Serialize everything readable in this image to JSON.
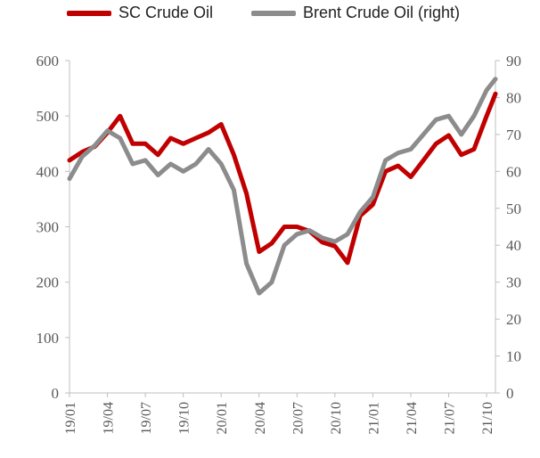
{
  "chart_data": {
    "type": "line",
    "title": "",
    "xlabel": "",
    "ylabel": "",
    "legend_position": "top",
    "grid": false,
    "x_ticks": [
      "19/01",
      "19/04",
      "19/07",
      "19/10",
      "20/01",
      "20/04",
      "20/07",
      "20/10",
      "21/01",
      "21/04",
      "21/07",
      "21/10"
    ],
    "y_left": {
      "ticks": [
        0,
        100,
        200,
        300,
        400,
        500,
        600
      ],
      "ylim": [
        0,
        600
      ]
    },
    "y_right": {
      "ticks": [
        0,
        10,
        20,
        30,
        40,
        50,
        60,
        70,
        80,
        90
      ],
      "ylim": [
        0,
        90
      ]
    },
    "series": [
      {
        "name": "SC Crude Oil",
        "axis": "left",
        "color": "#c00000",
        "x": [
          "19/01",
          "19/02",
          "19/03",
          "19/04",
          "19/05",
          "19/06",
          "19/07",
          "19/08",
          "19/09",
          "19/10",
          "19/11",
          "19/12",
          "20/01",
          "20/02",
          "20/03",
          "20/04",
          "20/05",
          "20/06",
          "20/07",
          "20/08",
          "20/09",
          "20/10",
          "20/11",
          "20/12",
          "21/01",
          "21/02",
          "21/03",
          "21/04",
          "21/05",
          "21/06",
          "21/07",
          "21/08",
          "21/09",
          "21/10",
          "21/11"
        ],
        "values": [
          420,
          435,
          445,
          470,
          500,
          450,
          450,
          430,
          460,
          450,
          460,
          470,
          485,
          430,
          360,
          255,
          270,
          300,
          300,
          292,
          272,
          265,
          235,
          320,
          340,
          400,
          410,
          390,
          420,
          450,
          465,
          430,
          440,
          500,
          540
        ]
      },
      {
        "name": "Brent Crude Oil (right)",
        "axis": "right",
        "color": "#8c8c8c",
        "x": [
          "19/01",
          "19/02",
          "19/03",
          "19/04",
          "19/05",
          "19/06",
          "19/07",
          "19/08",
          "19/09",
          "19/10",
          "19/11",
          "19/12",
          "20/01",
          "20/02",
          "20/03",
          "20/04",
          "20/05",
          "20/06",
          "20/07",
          "20/08",
          "20/09",
          "20/10",
          "20/11",
          "20/12",
          "21/01",
          "21/02",
          "21/03",
          "21/04",
          "21/05",
          "21/06",
          "21/07",
          "21/08",
          "21/09",
          "21/10",
          "21/11"
        ],
        "values": [
          58,
          64,
          67,
          71,
          69,
          62,
          63,
          59,
          62,
          60,
          62,
          66,
          62,
          55,
          35,
          27,
          30,
          40,
          43,
          44,
          42,
          41,
          43,
          49,
          53,
          63,
          65,
          66,
          70,
          74,
          75,
          70,
          75,
          82,
          85
        ]
      }
    ]
  }
}
